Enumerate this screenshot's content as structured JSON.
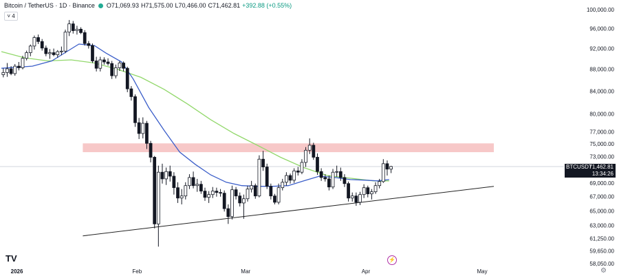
{
  "header": {
    "symbol": "Bitcoin / TetherUS · 1D · Binance",
    "open": "O71,069.93",
    "high": "H71,575.00",
    "low": "L70,466.00",
    "close": "C71,462.81",
    "change": "+392.88 (+0.55%)",
    "indicator_count": "4"
  },
  "price_tag": {
    "symbol": "BTCUSDT",
    "price": "71,462.81",
    "timer": "13:34:26"
  },
  "y_axis_labels": [
    "100,000.00",
    "96,000.00",
    "92,000.00",
    "88,000.00",
    "84,000.00",
    "80,000.00",
    "77,000.00",
    "75,000.00",
    "73,000.00",
    "69,000.00",
    "67,000.00",
    "65,000.00",
    "63,000.00",
    "61,250.00",
    "59,650.00",
    "58,050.00"
  ],
  "x_axis_labels": [
    {
      "text": "2026",
      "bold": true
    },
    {
      "text": "Feb",
      "bold": false
    },
    {
      "text": "Mar",
      "bold": false
    },
    {
      "text": "Apr",
      "bold": false
    },
    {
      "text": "May",
      "bold": false
    }
  ],
  "logo_text": "TV",
  "colors": {
    "up": "#089981",
    "down": "#131722",
    "ma_fast": "#3b5ec9",
    "ma_slow": "#92d86b",
    "resistance_zone": "#f4b6b6",
    "trendline": "#222222",
    "price_line": "#d1d4dc"
  },
  "chart_data": {
    "type": "candlestick",
    "symbol": "BTCUSDT",
    "timeframe": "1D",
    "y_scale": "log",
    "ylim": [
      58050,
      100000
    ],
    "x_start": "2025-12-28",
    "x_end": "2026-05-04",
    "candles": [
      [
        "2025-12-28",
        87000,
        88200,
        86500,
        87400
      ],
      [
        "2025-12-29",
        87400,
        89200,
        86600,
        88100
      ],
      [
        "2025-12-30",
        88100,
        88600,
        86900,
        87200
      ],
      [
        "2025-12-31",
        87200,
        89000,
        86800,
        88600
      ],
      [
        "2026-01-01",
        88600,
        89400,
        87800,
        88300
      ],
      [
        "2026-01-02",
        88300,
        90600,
        88000,
        90100
      ],
      [
        "2026-01-03",
        90100,
        91600,
        89700,
        91200
      ],
      [
        "2026-01-04",
        91200,
        92800,
        90500,
        92500
      ],
      [
        "2026-01-05",
        92500,
        94600,
        91800,
        94200
      ],
      [
        "2026-01-06",
        94200,
        94800,
        92900,
        93400
      ],
      [
        "2026-01-07",
        93400,
        93900,
        91600,
        92100
      ],
      [
        "2026-01-08",
        92100,
        92600,
        90500,
        91000
      ],
      [
        "2026-01-09",
        91000,
        91900,
        90000,
        91200
      ],
      [
        "2026-01-10",
        91200,
        92000,
        90500,
        90800
      ],
      [
        "2026-01-11",
        90800,
        91700,
        90200,
        91400
      ],
      [
        "2026-01-12",
        91400,
        92400,
        90700,
        91500
      ],
      [
        "2026-01-13",
        91500,
        95800,
        91100,
        95300
      ],
      [
        "2026-01-14",
        95300,
        97800,
        94500,
        97000
      ],
      [
        "2026-01-15",
        97000,
        97600,
        95000,
        95600
      ],
      [
        "2026-01-16",
        95600,
        96600,
        94800,
        95900
      ],
      [
        "2026-01-17",
        95900,
        96300,
        94900,
        95200
      ],
      [
        "2026-01-18",
        95200,
        95700,
        92600,
        93000
      ],
      [
        "2026-01-19",
        93000,
        93500,
        92000,
        92600
      ],
      [
        "2026-01-20",
        92600,
        93000,
        89200,
        89600
      ],
      [
        "2026-01-21",
        89600,
        90400,
        87600,
        88200
      ],
      [
        "2026-01-22",
        88200,
        90400,
        87600,
        89800
      ],
      [
        "2026-01-23",
        89800,
        90300,
        88900,
        89400
      ],
      [
        "2026-01-24",
        89400,
        90100,
        88700,
        89100
      ],
      [
        "2026-01-25",
        89100,
        89600,
        86200,
        86800
      ],
      [
        "2026-01-26",
        86800,
        88900,
        86300,
        88300
      ],
      [
        "2026-01-27",
        88300,
        89600,
        87700,
        89200
      ],
      [
        "2026-01-28",
        89200,
        89500,
        87600,
        88200
      ],
      [
        "2026-01-29",
        88200,
        88500,
        83800,
        84400
      ],
      [
        "2026-01-30",
        84400,
        84900,
        82300,
        83000
      ],
      [
        "2026-01-31",
        83000,
        83400,
        77800,
        78500
      ],
      [
        "2026-02-01",
        78500,
        79300,
        75800,
        76700
      ],
      [
        "2026-02-02",
        76700,
        79400,
        75900,
        78400
      ],
      [
        "2026-02-03",
        78400,
        78800,
        74200,
        75100
      ],
      [
        "2026-02-04",
        75100,
        75500,
        72100,
        72900
      ],
      [
        "2026-02-05",
        72900,
        73100,
        62600,
        63200
      ],
      [
        "2026-02-06",
        63200,
        71600,
        60200,
        70600
      ],
      [
        "2026-02-07",
        70600,
        71900,
        68900,
        69600
      ],
      [
        "2026-02-08",
        69600,
        71300,
        68700,
        70700
      ],
      [
        "2026-02-09",
        70700,
        71600,
        69200,
        70000
      ],
      [
        "2026-02-10",
        70000,
        70600,
        67300,
        68300
      ],
      [
        "2026-02-11",
        68300,
        69100,
        66100,
        66800
      ],
      [
        "2026-02-12",
        66800,
        68100,
        65900,
        67100
      ],
      [
        "2026-02-13",
        67100,
        69100,
        66600,
        68600
      ],
      [
        "2026-02-14",
        68600,
        70300,
        68100,
        69800
      ],
      [
        "2026-02-15",
        69800,
        70700,
        68200,
        68600
      ],
      [
        "2026-02-16",
        68600,
        69600,
        67700,
        68800
      ],
      [
        "2026-02-17",
        68800,
        69300,
        67400,
        67800
      ],
      [
        "2026-02-18",
        67800,
        68300,
        66400,
        66900
      ],
      [
        "2026-02-19",
        66900,
        67800,
        66100,
        67300
      ],
      [
        "2026-02-20",
        67300,
        68400,
        66800,
        67800
      ],
      [
        "2026-02-21",
        67800,
        68300,
        67000,
        67600
      ],
      [
        "2026-02-22",
        67600,
        68100,
        67000,
        67500
      ],
      [
        "2026-02-23",
        67500,
        67900,
        64900,
        65300
      ],
      [
        "2026-02-24",
        65300,
        65900,
        63200,
        64200
      ],
      [
        "2026-02-25",
        64200,
        68600,
        63800,
        68000
      ],
      [
        "2026-02-26",
        68000,
        68400,
        66600,
        67100
      ],
      [
        "2026-02-27",
        67100,
        67600,
        65600,
        66100
      ],
      [
        "2026-02-28",
        66100,
        67300,
        63900,
        66700
      ],
      [
        "2026-03-01",
        66700,
        68600,
        66300,
        68100
      ],
      [
        "2026-03-02",
        68100,
        69300,
        67600,
        68600
      ],
      [
        "2026-03-03",
        68600,
        68900,
        66700,
        67100
      ],
      [
        "2026-03-04",
        67100,
        73200,
        66900,
        72600
      ],
      [
        "2026-03-05",
        72600,
        73900,
        70800,
        71400
      ],
      [
        "2026-03-06",
        71400,
        71900,
        68100,
        68500
      ],
      [
        "2026-03-07",
        68500,
        68900,
        66600,
        67100
      ],
      [
        "2026-03-08",
        67100,
        67400,
        65900,
        66200
      ],
      [
        "2026-03-09",
        66200,
        68900,
        65900,
        68300
      ],
      [
        "2026-03-10",
        68300,
        69600,
        67900,
        69100
      ],
      [
        "2026-03-11",
        69100,
        70600,
        68600,
        70100
      ],
      [
        "2026-03-12",
        70100,
        70400,
        68900,
        69400
      ],
      [
        "2026-03-13",
        69400,
        71200,
        69000,
        70800
      ],
      [
        "2026-03-14",
        70800,
        71400,
        70100,
        70600
      ],
      [
        "2026-03-15",
        70600,
        72600,
        70300,
        72100
      ],
      [
        "2026-03-16",
        72100,
        74500,
        71400,
        74000
      ],
      [
        "2026-03-17",
        74000,
        75900,
        73400,
        74800
      ],
      [
        "2026-03-18",
        74800,
        75200,
        72500,
        72900
      ],
      [
        "2026-03-19",
        72900,
        73500,
        70200,
        70700
      ],
      [
        "2026-03-20",
        70700,
        71200,
        69300,
        69800
      ],
      [
        "2026-03-21",
        69800,
        70300,
        69200,
        69600
      ],
      [
        "2026-03-22",
        69600,
        70100,
        67900,
        68400
      ],
      [
        "2026-03-23",
        68400,
        71100,
        68100,
        70600
      ],
      [
        "2026-03-24",
        70600,
        71600,
        69900,
        70700
      ],
      [
        "2026-03-25",
        70700,
        71300,
        69300,
        69800
      ],
      [
        "2026-03-26",
        69800,
        70300,
        68400,
        68900
      ],
      [
        "2026-03-27",
        68900,
        69200,
        66300,
        66800
      ],
      [
        "2026-03-28",
        66800,
        67600,
        66300,
        67100
      ],
      [
        "2026-03-29",
        67100,
        67600,
        65700,
        66200
      ],
      [
        "2026-03-30",
        66200,
        67700,
        65800,
        67300
      ],
      [
        "2026-03-31",
        67300,
        68800,
        66800,
        68300
      ],
      [
        "2026-04-01",
        68300,
        68600,
        66900,
        67400
      ],
      [
        "2026-04-02",
        67400,
        68100,
        66600,
        67700
      ],
      [
        "2026-04-03",
        67700,
        69100,
        67400,
        68600
      ],
      [
        "2026-04-04",
        68600,
        69600,
        68200,
        69200
      ],
      [
        "2026-04-05",
        69200,
        72600,
        69000,
        71900
      ],
      [
        "2026-04-06",
        71900,
        72400,
        70100,
        71069.93
      ],
      [
        "2026-04-07",
        71069.93,
        71575.0,
        70466.0,
        71462.81
      ]
    ],
    "ma_fast": [
      [
        "2025-12-28",
        88200
      ],
      [
        "2026-01-05",
        88600
      ],
      [
        "2026-01-10",
        89600
      ],
      [
        "2026-01-13",
        91000
      ],
      [
        "2026-01-17",
        92900
      ],
      [
        "2026-01-21",
        92600
      ],
      [
        "2026-01-24",
        91100
      ],
      [
        "2026-01-28",
        89400
      ],
      [
        "2026-01-31",
        86200
      ],
      [
        "2026-02-04",
        81100
      ],
      [
        "2026-02-08",
        77200
      ],
      [
        "2026-02-12",
        73700
      ],
      [
        "2026-02-16",
        71800
      ],
      [
        "2026-02-20",
        70200
      ],
      [
        "2026-02-24",
        69100
      ],
      [
        "2026-02-28",
        68600
      ],
      [
        "2026-03-04",
        68500
      ],
      [
        "2026-03-08",
        68500
      ],
      [
        "2026-03-12",
        68600
      ],
      [
        "2026-03-16",
        69300
      ],
      [
        "2026-03-20",
        70000
      ],
      [
        "2026-03-24",
        69800
      ],
      [
        "2026-03-28",
        69500
      ],
      [
        "2026-04-01",
        69400
      ],
      [
        "2026-04-04",
        69300
      ],
      [
        "2026-04-07",
        69500
      ]
    ],
    "ma_slow": [
      [
        "2025-12-28",
        91400
      ],
      [
        "2026-01-03",
        90200
      ],
      [
        "2026-01-09",
        89600
      ],
      [
        "2026-01-15",
        89800
      ],
      [
        "2026-01-21",
        89200
      ],
      [
        "2026-01-27",
        88000
      ],
      [
        "2026-02-02",
        86500
      ],
      [
        "2026-02-08",
        84300
      ],
      [
        "2026-02-14",
        81700
      ],
      [
        "2026-02-20",
        79000
      ],
      [
        "2026-02-26",
        76700
      ],
      [
        "2026-03-04",
        74800
      ],
      [
        "2026-03-10",
        72900
      ],
      [
        "2026-03-16",
        71300
      ],
      [
        "2026-03-22",
        70100
      ],
      [
        "2026-03-28",
        69700
      ],
      [
        "2026-04-03",
        69300
      ],
      [
        "2026-04-07",
        69300
      ]
    ],
    "resistance_zone": {
      "x_start": "2026-01-18",
      "x_end": "2026-05-04",
      "low": 73700,
      "high": 75100
    },
    "trendline": {
      "from": [
        "2026-01-18",
        61600
      ],
      "to": [
        "2026-05-04",
        68500
      ]
    },
    "last_price": 71462.81
  }
}
